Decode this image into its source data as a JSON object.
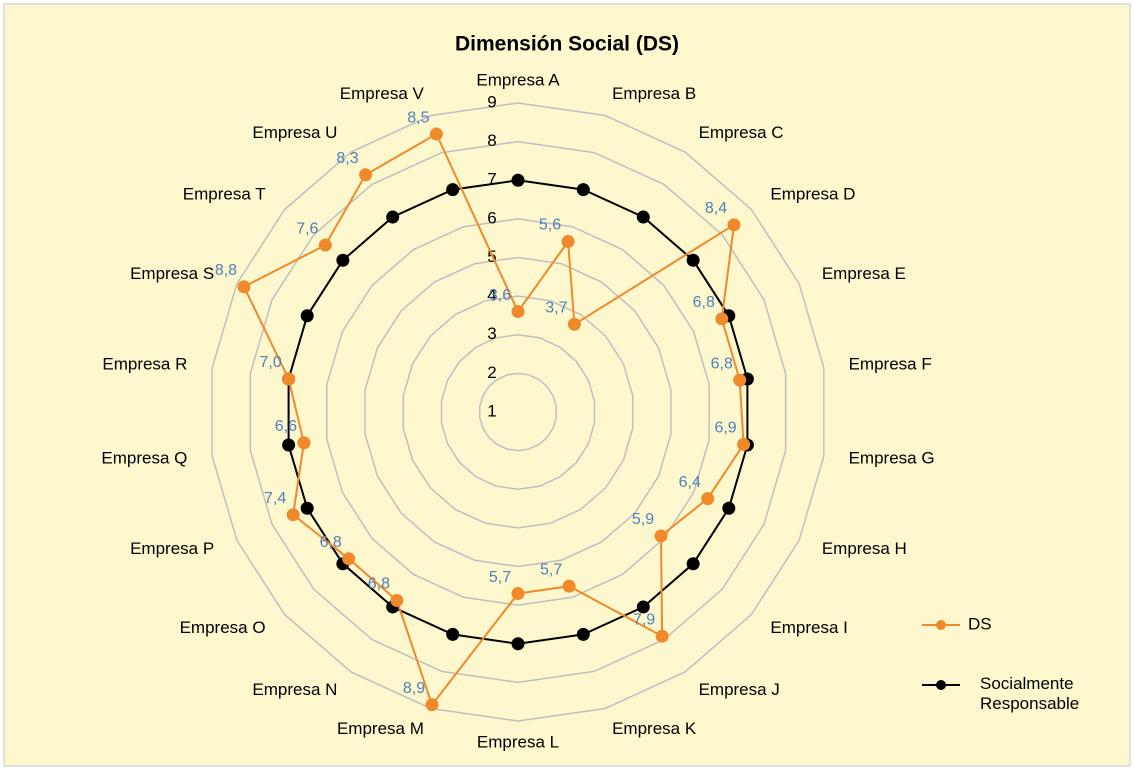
{
  "chart_data": {
    "type": "radar",
    "title": "Dimensión Social (DS)",
    "categories": [
      "Empresa A",
      "Empresa B",
      "Empresa C",
      "Empresa D",
      "Empresa E",
      "Empresa F",
      "Empresa G",
      "Empresa H",
      "Empresa I",
      "Empresa J",
      "Empresa K",
      "Empresa L",
      "Empresa M",
      "Empresa N",
      "Empresa O",
      "Empresa P",
      "Empresa Q",
      "Empresa R",
      "Empresa S",
      "Empresa T",
      "Empresa U",
      "Empresa V"
    ],
    "series": [
      {
        "name": "DS",
        "color": "#f0892a",
        "values": [
          3.6,
          5.6,
          3.7,
          8.4,
          6.8,
          6.8,
          6.9,
          6.4,
          5.9,
          7.9,
          5.7,
          5.7,
          8.9,
          6.8,
          6.8,
          7.4,
          6.6,
          7.0,
          8.8,
          7.6,
          8.3,
          8.5
        ],
        "value_labels": [
          "3,6",
          "5,6",
          "3,7",
          "8,4",
          "6,8",
          "6,8",
          "6,9",
          "6,4",
          "5,9",
          "7,9",
          "5,7",
          "5,7",
          "8,9",
          "6,8",
          "6,8",
          "7,4",
          "6,6",
          "7,0",
          "8,8",
          "7,6",
          "8,3",
          "8,5"
        ]
      },
      {
        "name": "Socialmente Responsable",
        "color": "#000000",
        "values": [
          7,
          7,
          7,
          7,
          7,
          7,
          7,
          7,
          7,
          7,
          7,
          7,
          7,
          7,
          7,
          7,
          7,
          7,
          7,
          7,
          7,
          7
        ]
      }
    ],
    "ylim": [
      1,
      9
    ],
    "yticks": [
      1,
      2,
      3,
      4,
      5,
      6,
      7,
      8,
      9
    ],
    "grid": true,
    "legend": "right"
  }
}
